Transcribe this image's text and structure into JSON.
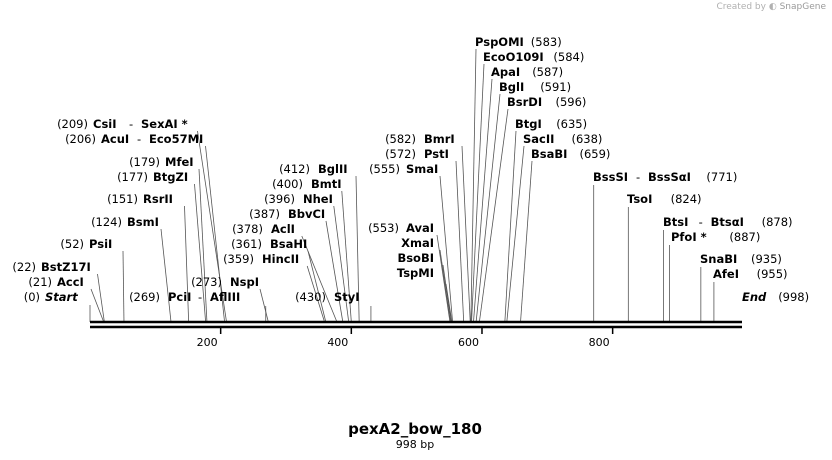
{
  "credit": {
    "prefix": "Created by",
    "brand": "SnapGene"
  },
  "sequence": {
    "name": "pexA2_bow_180",
    "length_label": "998 bp",
    "length": 998
  },
  "ticks": [
    200,
    400,
    600,
    800
  ],
  "left_sites": [
    {
      "pos": "(209)",
      "names": [
        "CsiI",
        "SexAI *"
      ],
      "cut": 209
    },
    {
      "pos": "(206)",
      "names": [
        "AcuI",
        "Eco57MI"
      ],
      "cut": 206
    },
    {
      "pos": "(179)",
      "names": [
        "MfeI"
      ],
      "cut": 179
    },
    {
      "pos": "(177)",
      "names": [
        "BtgZI"
      ],
      "cut": 177
    },
    {
      "pos": "(151)",
      "names": [
        "RsrII"
      ],
      "cut": 151
    },
    {
      "pos": "(124)",
      "names": [
        "BsmI"
      ],
      "cut": 124
    },
    {
      "pos": "(52)",
      "names": [
        "PsiI"
      ],
      "cut": 52
    },
    {
      "pos": "(22)",
      "names": [
        "BstZ17I"
      ],
      "cut": 22
    },
    {
      "pos": "(21)",
      "names": [
        "AccI"
      ],
      "cut": 21
    },
    {
      "pos": "(0)",
      "names": [
        "Start"
      ],
      "cut": 0,
      "italic": true
    }
  ],
  "mid_left_sites": [
    {
      "pos": "(412)",
      "names": [
        "BglII"
      ],
      "cut": 412
    },
    {
      "pos": "(400)",
      "names": [
        "BmtI"
      ],
      "cut": 400
    },
    {
      "pos": "(396)",
      "names": [
        "NheI"
      ],
      "cut": 396
    },
    {
      "pos": "(387)",
      "names": [
        "BbvCI"
      ],
      "cut": 387
    },
    {
      "pos": "(378)",
      "names": [
        "AclI"
      ],
      "cut": 378
    },
    {
      "pos": "(361)",
      "names": [
        "BsaHI"
      ],
      "cut": 361
    },
    {
      "pos": "(359)",
      "names": [
        "HincII"
      ],
      "cut": 359
    },
    {
      "pos": "(273)",
      "names": [
        "NspI"
      ],
      "cut": 273
    },
    {
      "pos": "(269)",
      "names": [
        "PciI",
        "AflIII"
      ],
      "cut": 269
    },
    {
      "pos": "(430)",
      "names": [
        "StyI"
      ],
      "cut": 430
    }
  ],
  "smai": {
    "pos": "(555)",
    "name": "SmaI",
    "cut": 555
  },
  "ava_group": {
    "pos": "(553)",
    "names": [
      "AvaI",
      "XmaI",
      "BsoBI",
      "TspMI"
    ],
    "cut": 553
  },
  "bmr_group": [
    {
      "pos": "(582)",
      "name": "BmrI",
      "cut": 582
    },
    {
      "pos": "(572)",
      "name": "PstI",
      "cut": 572
    }
  ],
  "top_sites": [
    {
      "name": "PspOMI",
      "pos": "(583)",
      "cut": 583
    },
    {
      "name": "EcoO109I",
      "pos": "(584)",
      "cut": 584
    },
    {
      "name": "ApaI",
      "pos": "(587)",
      "cut": 587
    },
    {
      "name": "BglI",
      "pos": "(591)",
      "cut": 591
    },
    {
      "name": "BsrDI",
      "pos": "(596)",
      "cut": 596
    },
    {
      "name": "BtgI",
      "pos": "(635)",
      "cut": 635
    },
    {
      "name": "SacII",
      "pos": "(638)",
      "cut": 638
    },
    {
      "name": "BsaBI",
      "pos": "(659)",
      "cut": 659
    }
  ],
  "right_sites": [
    {
      "names": [
        "BssSI",
        "BssSαI"
      ],
      "pos": "(771)",
      "cut": 771
    },
    {
      "names": [
        "TsoI"
      ],
      "pos": "(824)",
      "cut": 824
    },
    {
      "names": [
        "BtsI",
        "BtsαI"
      ],
      "pos": "(878)",
      "cut": 878
    },
    {
      "names": [
        "PfoI *"
      ],
      "pos": "(887)",
      "cut": 887
    },
    {
      "names": [
        "SnaBI"
      ],
      "pos": "(935)",
      "cut": 935
    },
    {
      "names": [
        "AfeI"
      ],
      "pos": "(955)",
      "cut": 955
    },
    {
      "names": [
        "End"
      ],
      "pos": "(998)",
      "cut": 998,
      "italic": true
    }
  ]
}
